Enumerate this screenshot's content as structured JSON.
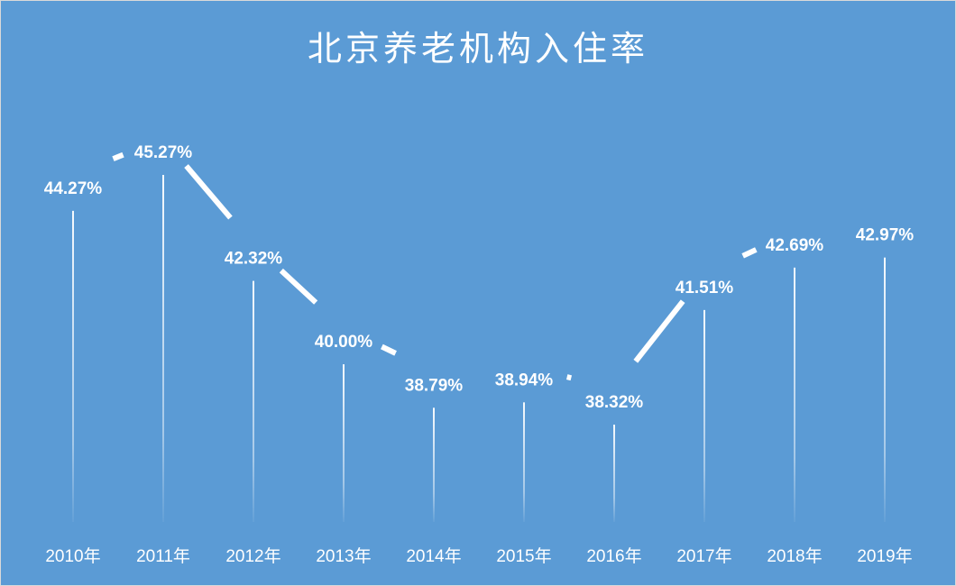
{
  "chart_data": {
    "type": "line",
    "title": "北京养老机构入住率",
    "xlabel": "",
    "ylabel": "",
    "categories": [
      "2010年",
      "2011年",
      "2012年",
      "2013年",
      "2014年",
      "2015年",
      "2016年",
      "2017年",
      "2018年",
      "2019年"
    ],
    "series": [
      {
        "name": "入住率",
        "values": [
          44.27,
          45.27,
          42.32,
          40.0,
          38.79,
          38.94,
          38.32,
          41.51,
          42.69,
          42.97
        ],
        "labels": [
          "44.27%",
          "45.27%",
          "42.32%",
          "40.00%",
          "38.79%",
          "38.94%",
          "38.32%",
          "41.51%",
          "42.69%",
          "42.97%"
        ]
      }
    ],
    "data_labels": true,
    "drop_lines": true,
    "grid": false,
    "legend": "none",
    "y_axis_visible": false
  },
  "colors": {
    "background": "#5b9bd5",
    "line": "#ffffff",
    "text": "#ffffff"
  }
}
